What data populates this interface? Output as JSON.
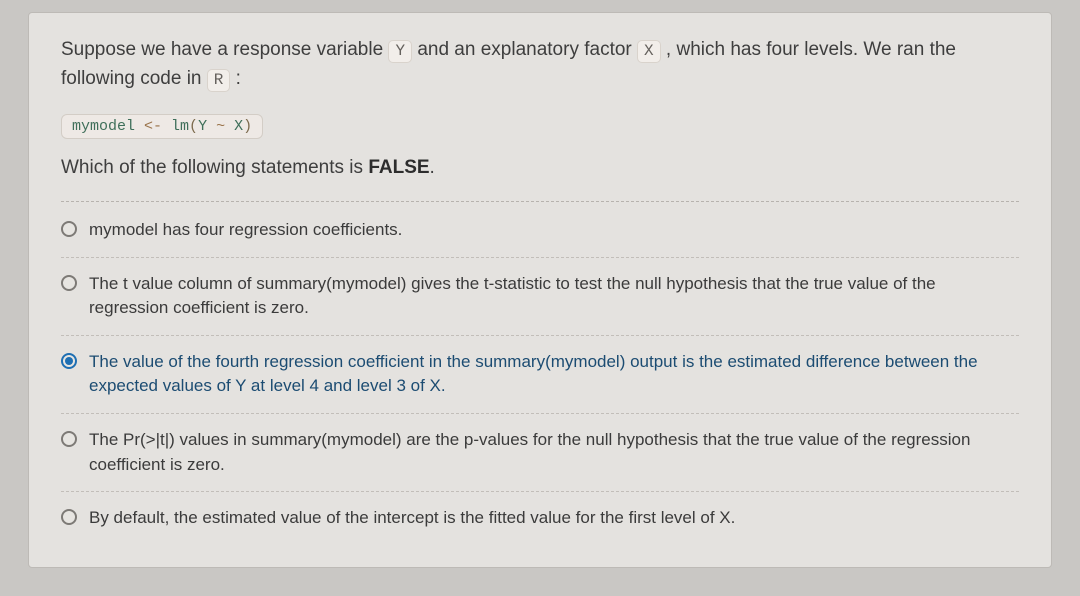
{
  "question": {
    "intro_pre": "Suppose we have a response variable ",
    "var_y": "Y",
    "intro_mid": " and an explanatory factor ",
    "var_x": "X",
    "intro_post": ", which has four levels. We ran the following code in ",
    "lang": "R",
    "intro_end": ":",
    "code_block": "mymodel <- lm(Y ~ X)",
    "which_pre": "Which of the following statements is ",
    "which_bold": "FALSE",
    "which_post": "."
  },
  "options": [
    {
      "label": "mymodel has four regression coefficients.",
      "selected": false
    },
    {
      "label": "The t value column of summary(mymodel) gives the t-statistic to test the null hypothesis that the true value of the regression coefficient is zero.",
      "selected": false
    },
    {
      "label": "The value of the fourth regression coefficient in the summary(mymodel) output is the estimated difference between the expected values of Y at level 4 and level 3 of X.",
      "selected": true
    },
    {
      "label": "The Pr(>|t|) values in summary(mymodel) are the p-values for the null hypothesis that the true value of the regression coefficient is zero.",
      "selected": false
    },
    {
      "label": "By default, the estimated value of the intercept is the fitted value for the first level of X.",
      "selected": false
    }
  ],
  "styling": {
    "frame_bg": "#e4e2df",
    "body_bg": "#c9c7c4",
    "text_color": "#3e3e3e",
    "code_color": "#3f6f5a",
    "accent_color": "#1e6fb3",
    "prompt_fontsize": 19,
    "option_fontsize": 17,
    "code_fontfamily": "Courier New"
  }
}
